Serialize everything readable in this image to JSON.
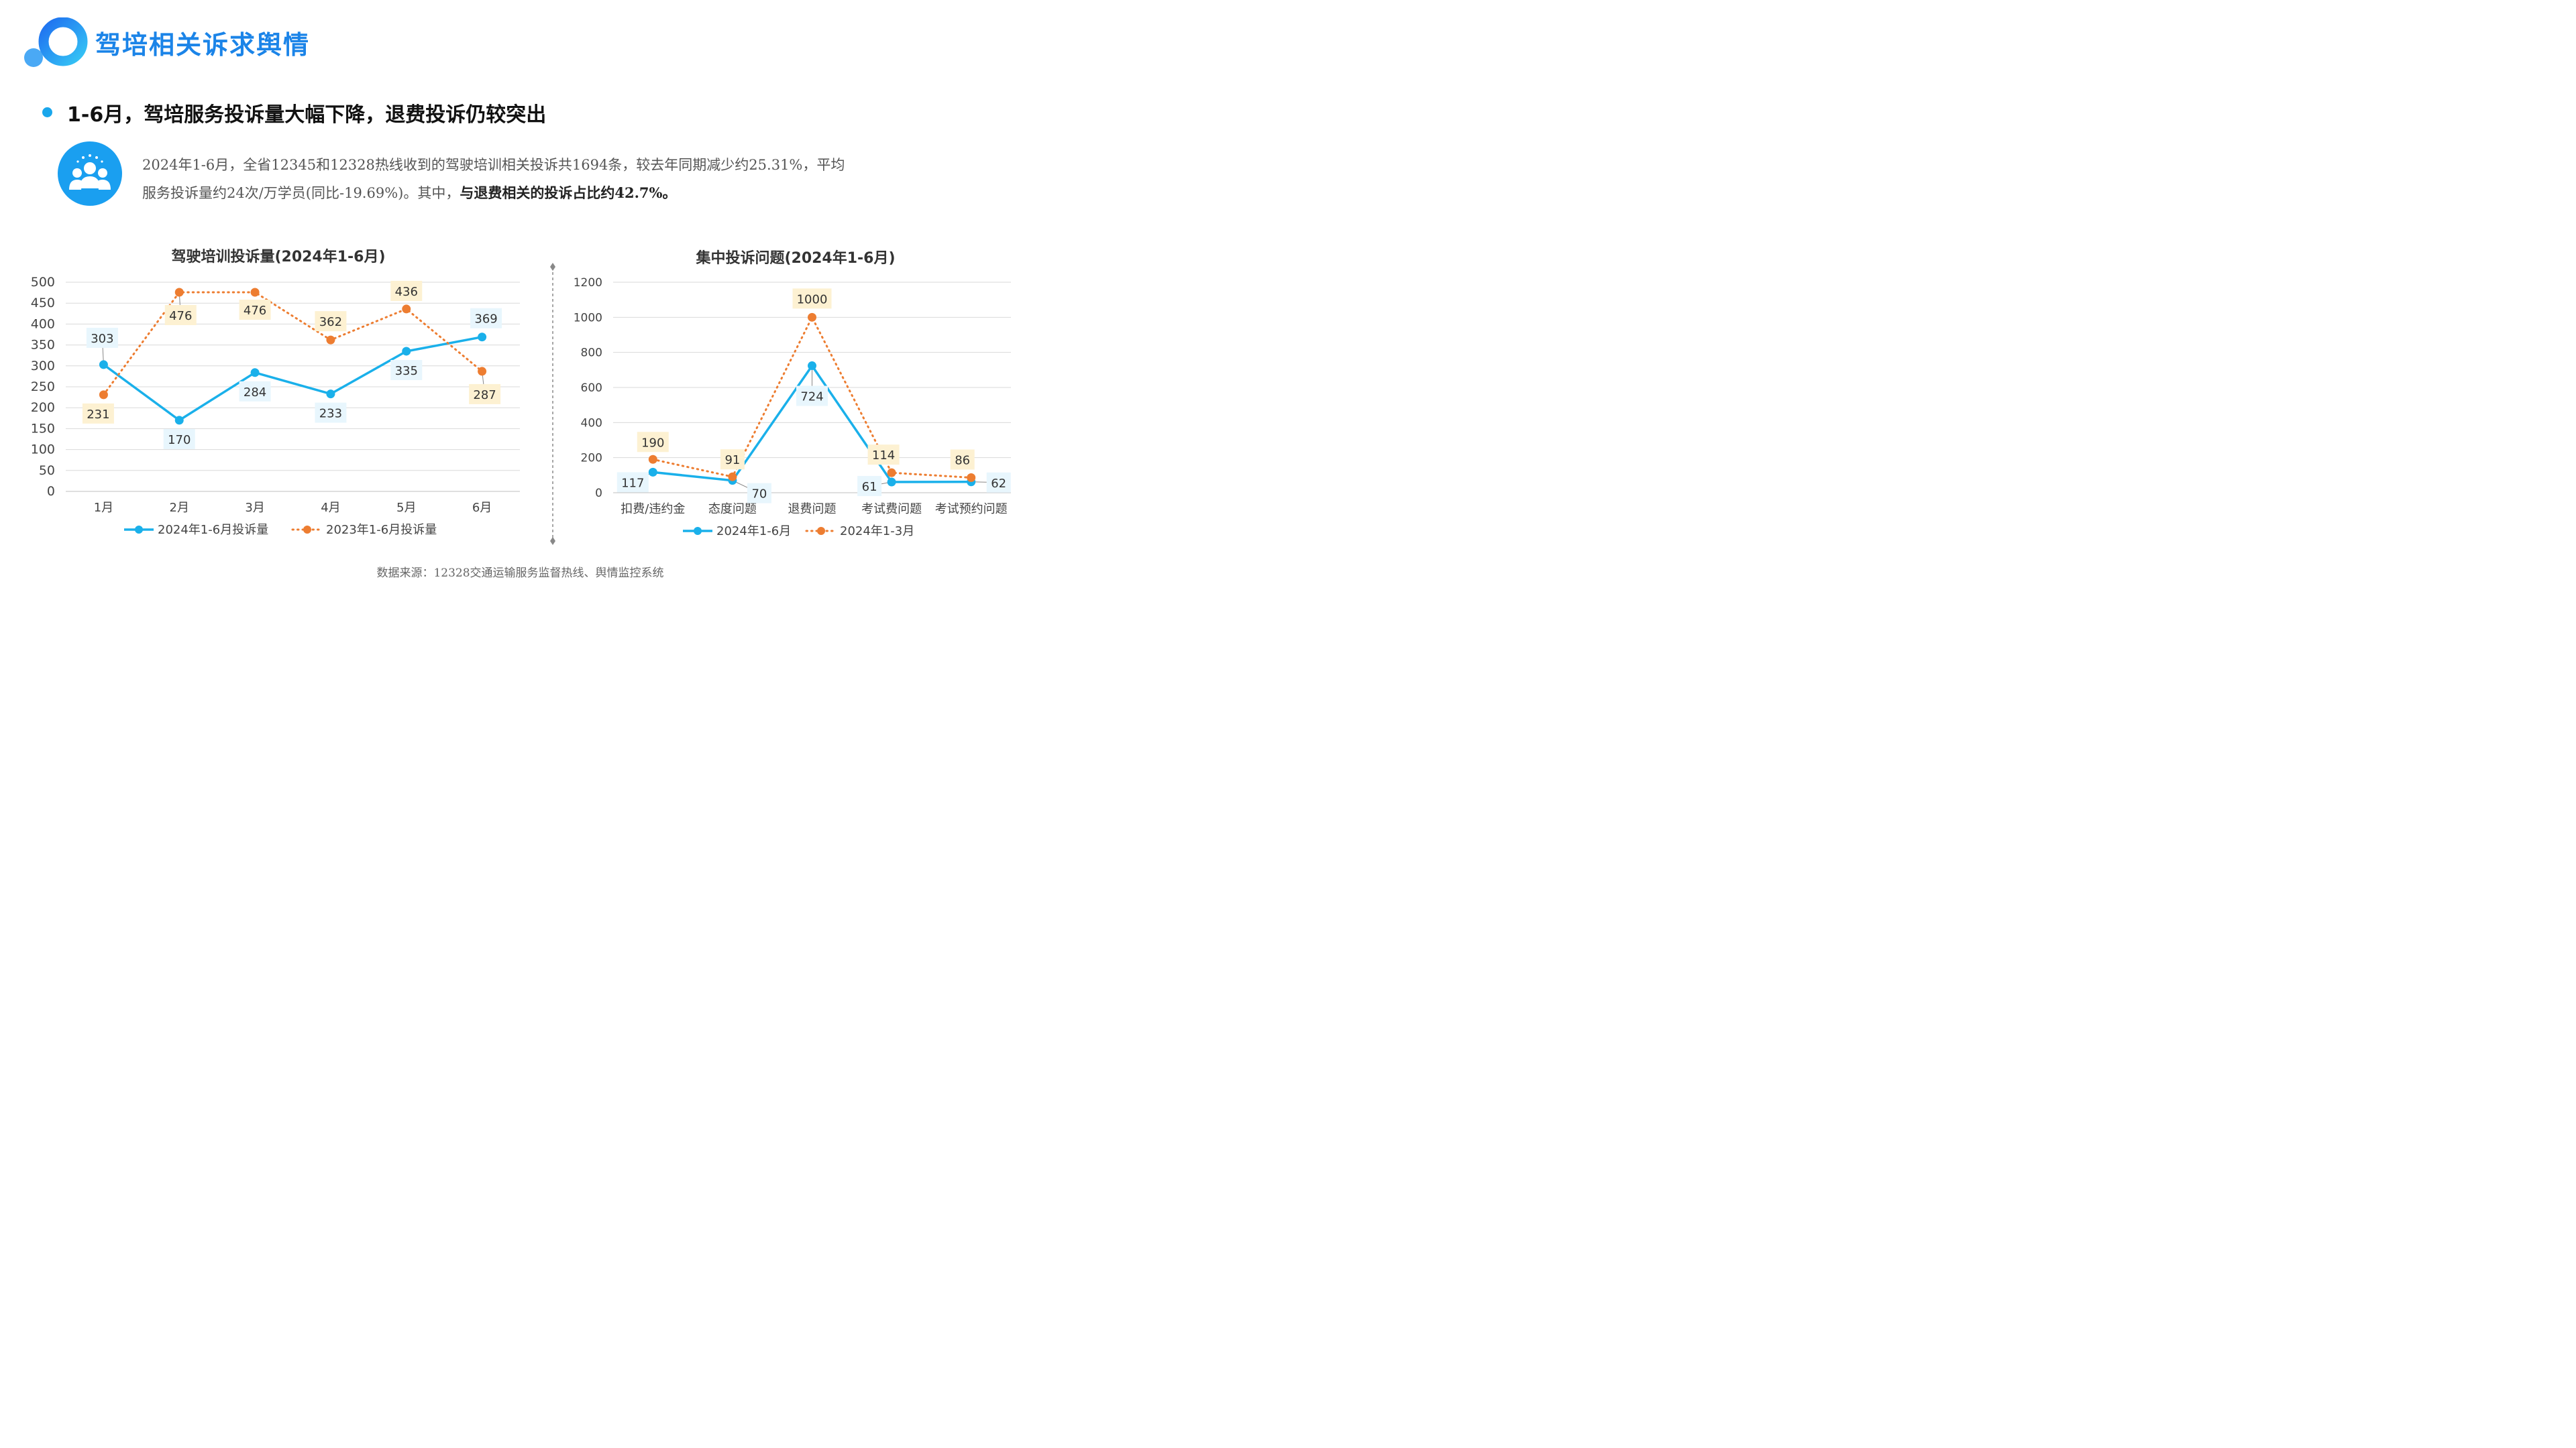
{
  "header": {
    "title": "驾培相关诉求舆情",
    "subtitle": "1-6月，驾培服务投诉量大幅下降，退费投诉仍较突出"
  },
  "summary": {
    "line1": "2024年1-6月，全省12345和12328热线收到的驾驶培训相关投诉共1694条，较去年同期减少约25.31%，平均",
    "line2_plain": "服务投诉量约24次/万学员(同比-19.69%)。其中，",
    "line2_bold": "与退费相关的投诉占比约42.7%。"
  },
  "footer": {
    "source": "数据来源：12328交通运输服务监督热线、舆情监控系统"
  },
  "colors": {
    "blue": "#1ab0ea",
    "orange": "#ed7d31",
    "title_blue": "#1b84e8",
    "label_blue_bg": "#e8f6fd",
    "label_orange_bg": "#fdf1d2"
  },
  "chart_data": [
    {
      "type": "line",
      "title": "驾驶培训投诉量(2024年1-6月)",
      "categories": [
        "1月",
        "2月",
        "3月",
        "4月",
        "5月",
        "6月"
      ],
      "ylim": [
        0,
        500
      ],
      "yticks": [
        0,
        50,
        100,
        150,
        200,
        250,
        300,
        350,
        400,
        450,
        500
      ],
      "grid": true,
      "legend": "bottom",
      "series": [
        {
          "name": "2024年1-6月投诉量",
          "values": [
            303,
            170,
            284,
            233,
            335,
            369
          ],
          "color": "#1ab0ea",
          "style": "solid"
        },
        {
          "name": "2023年1-6月投诉量",
          "values": [
            231,
            476,
            476,
            362,
            436,
            287
          ],
          "color": "#ed7d31",
          "style": "dotted"
        }
      ]
    },
    {
      "type": "line",
      "title": "集中投诉问题(2024年1-6月)",
      "categories": [
        "扣费/违约金",
        "态度问题",
        "退费问题",
        "考试费问题",
        "考试预约问题"
      ],
      "ylim": [
        0,
        1200
      ],
      "yticks": [
        0,
        200,
        400,
        600,
        800,
        1000,
        1200
      ],
      "grid": true,
      "legend": "bottom",
      "series": [
        {
          "name": "2024年1-6月",
          "values": [
            117,
            70,
            724,
            61,
            62
          ],
          "color": "#1ab0ea",
          "style": "solid"
        },
        {
          "name": "2024年1-3月",
          "values": [
            190,
            91,
            1000,
            114,
            86
          ],
          "color": "#ed7d31",
          "style": "dotted"
        }
      ]
    }
  ]
}
